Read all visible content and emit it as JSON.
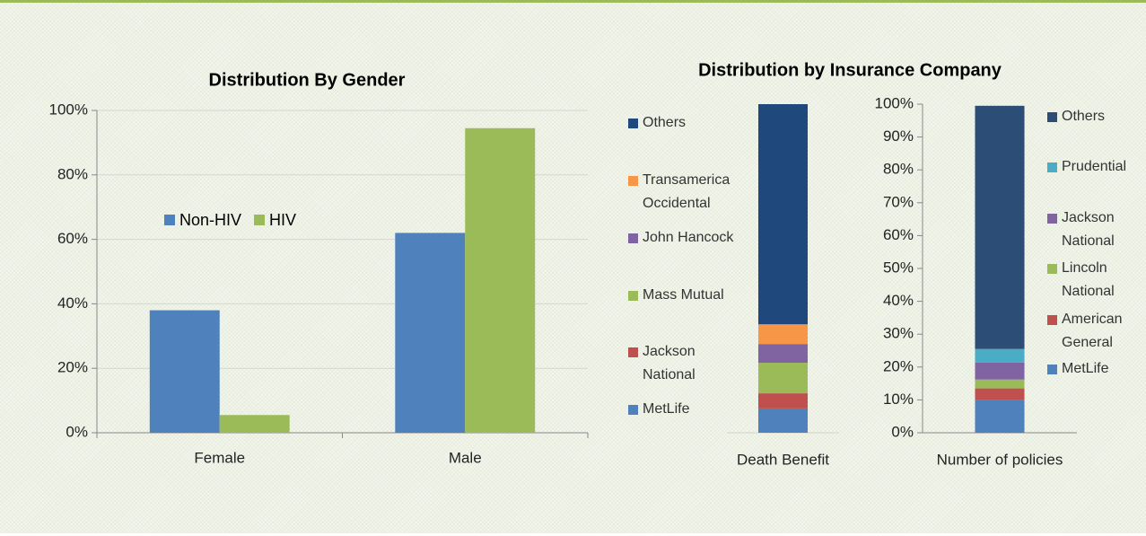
{
  "chart_data": [
    {
      "type": "bar",
      "title": "Distribution By Gender",
      "categories": [
        "Female",
        "Male"
      ],
      "series": [
        {
          "name": "Non-HIV",
          "color": "#4f81bd",
          "values": [
            38,
            62
          ]
        },
        {
          "name": "HIV",
          "color": "#9bbb59",
          "values": [
            5.5,
            94.5
          ]
        }
      ],
      "ylim": [
        0,
        100
      ],
      "yticks": [
        {
          "value": 0,
          "label": "0%"
        },
        {
          "value": 20,
          "label": "20%"
        },
        {
          "value": 40,
          "label": "40%"
        },
        {
          "value": 60,
          "label": "60%"
        },
        {
          "value": 80,
          "label": "80%"
        },
        {
          "value": 100,
          "label": "100%"
        }
      ],
      "grid": true
    },
    {
      "type": "stacked_bar",
      "title": "Distribution by Insurance Company",
      "categories": [
        "Death Benefit"
      ],
      "series": [
        {
          "name": "MetLife",
          "color": "#4f81bd",
          "values": [
            7.4
          ]
        },
        {
          "name": "Jackson National",
          "color": "#c0504d",
          "values": [
            4.6
          ]
        },
        {
          "name": "Mass Mutual",
          "color": "#9bbb59",
          "values": [
            9.3
          ]
        },
        {
          "name": "John Hancock",
          "color": "#8064a2",
          "values": [
            5.7
          ]
        },
        {
          "name": "Transamerica Occidental",
          "color": "#f79646",
          "values": [
            6
          ]
        },
        {
          "name": "Others",
          "color": "#1f497d",
          "values": [
            67
          ]
        }
      ],
      "ylim": [
        0,
        100
      ]
    },
    {
      "type": "stacked_bar",
      "categories": [
        "Number of policies"
      ],
      "series": [
        {
          "name": "MetLife",
          "color": "#4f81bd",
          "values": [
            10
          ]
        },
        {
          "name": "American General",
          "color": "#c0504d",
          "values": [
            3.5
          ]
        },
        {
          "name": "Lincoln National",
          "color": "#9bbb59",
          "values": [
            2.7
          ]
        },
        {
          "name": "Jackson National",
          "color": "#8064a2",
          "values": [
            5.2
          ]
        },
        {
          "name": "Prudential",
          "color": "#4bacc6",
          "values": [
            4.1
          ]
        },
        {
          "name": "Others",
          "color": "#2c4d75",
          "values": [
            74
          ]
        }
      ],
      "ylim": [
        0,
        100
      ],
      "yticks": [
        {
          "value": 0,
          "label": "0%"
        },
        {
          "value": 10,
          "label": "10%"
        },
        {
          "value": 20,
          "label": "20%"
        },
        {
          "value": 30,
          "label": "30%"
        },
        {
          "value": 40,
          "label": "40%"
        },
        {
          "value": 50,
          "label": "50%"
        },
        {
          "value": 60,
          "label": "60%"
        },
        {
          "value": 70,
          "label": "70%"
        },
        {
          "value": 80,
          "label": "80%"
        },
        {
          "value": 90,
          "label": "90%"
        },
        {
          "value": 100,
          "label": "100%"
        }
      ]
    }
  ]
}
